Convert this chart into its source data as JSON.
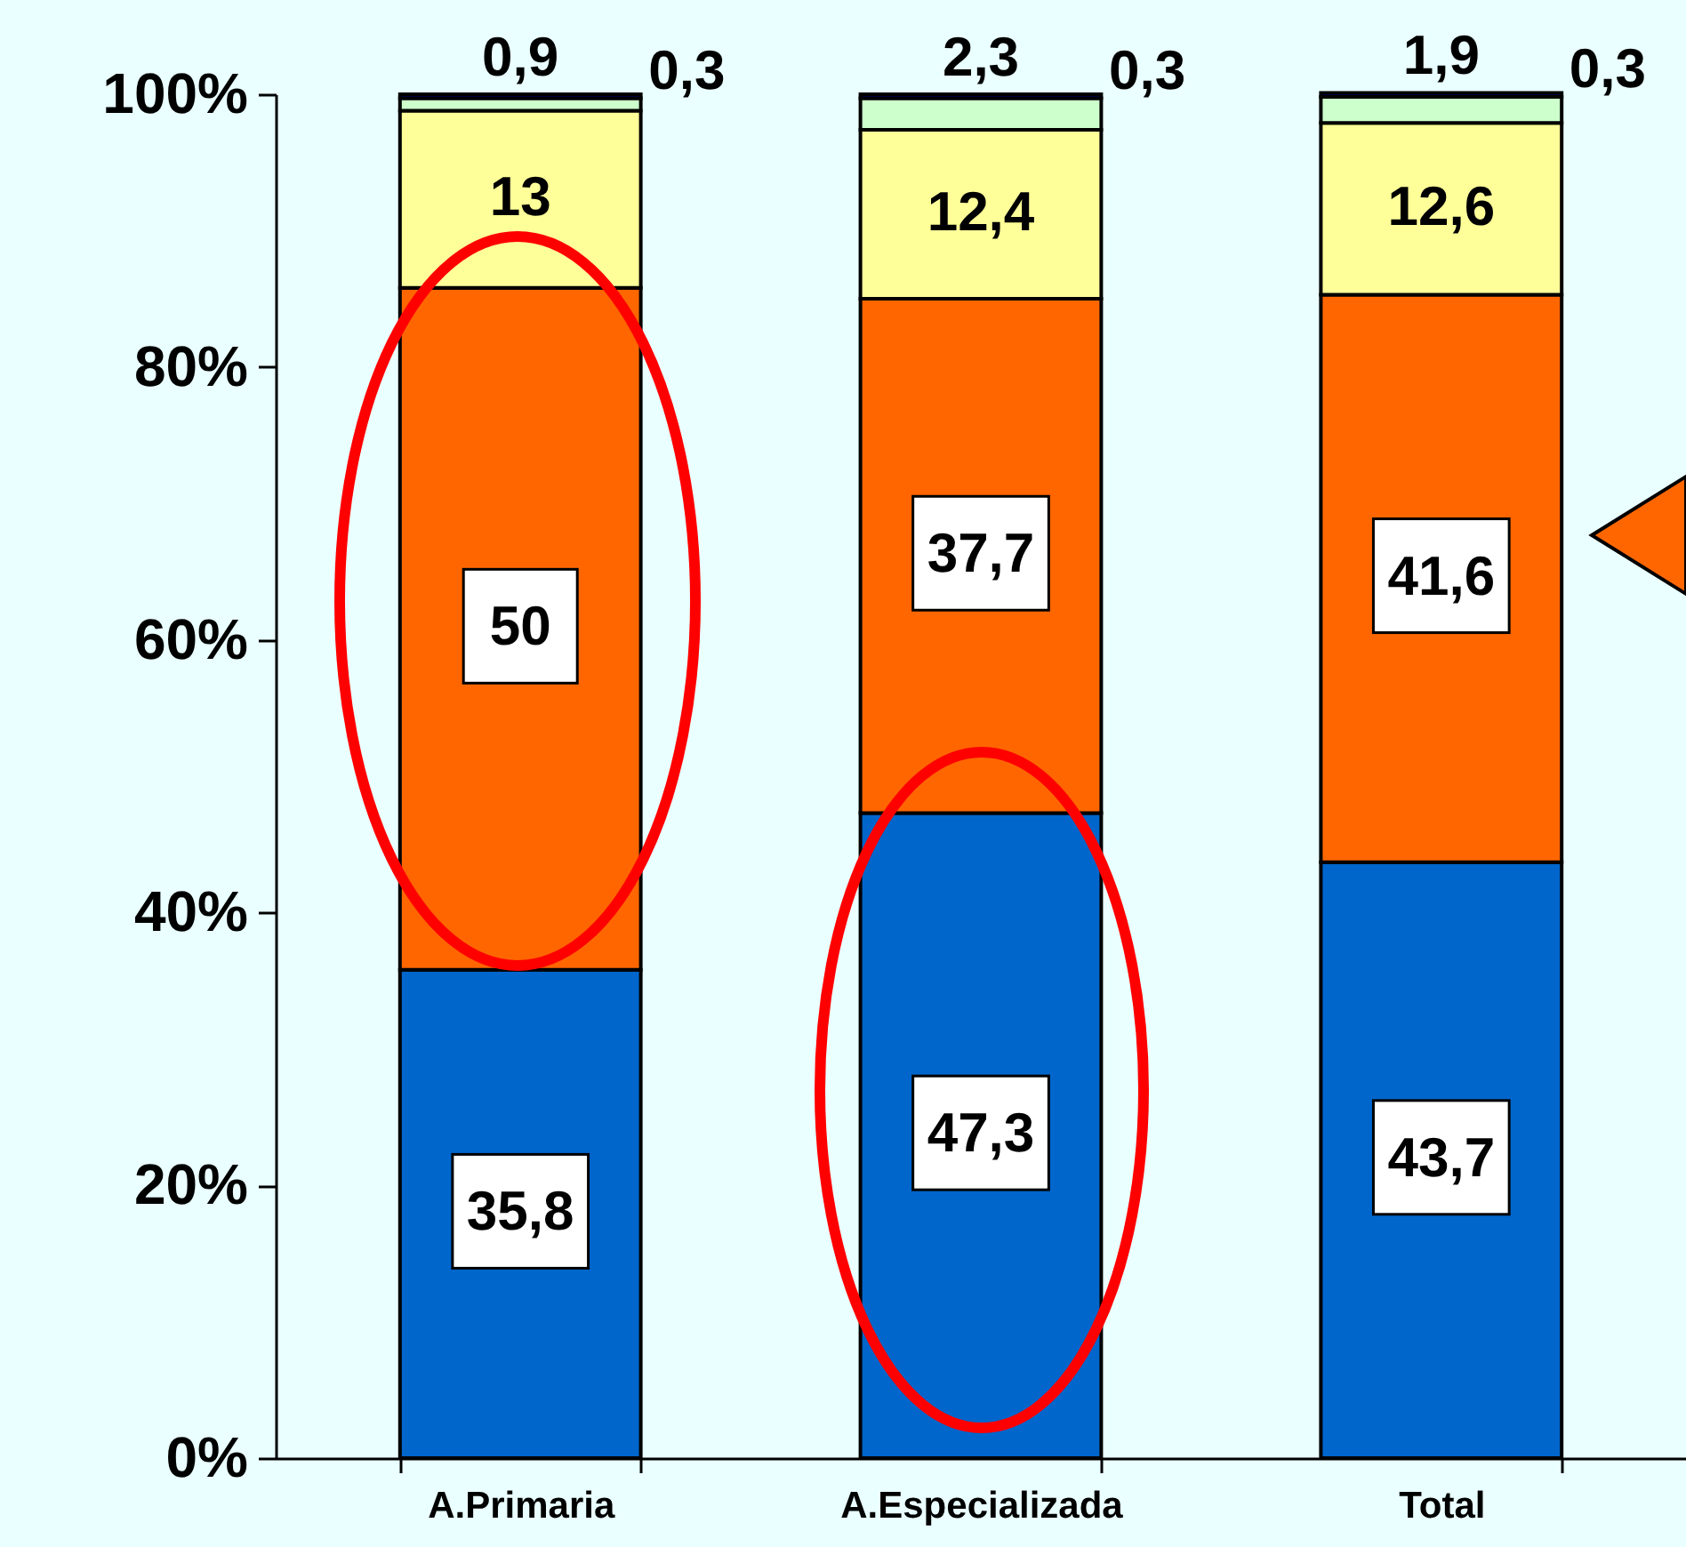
{
  "chart_data": {
    "type": "bar",
    "stacked": true,
    "categories": [
      "A.Primaria",
      "A.Especializada",
      "Total"
    ],
    "series": [
      {
        "color": "#0066cc",
        "values": [
          35.8,
          47.3,
          43.7
        ],
        "value_labels": [
          "35,8",
          "47,3",
          "43,7"
        ]
      },
      {
        "color": "#ff6600",
        "values": [
          50,
          37.7,
          41.6
        ],
        "value_labels": [
          "50",
          "37,7",
          "41,6"
        ]
      },
      {
        "color": "#ffff99",
        "values": [
          13,
          12.4,
          12.6
        ],
        "value_labels": [
          "13",
          "12,4",
          "12,6"
        ]
      },
      {
        "color": "#ccffcc",
        "values": [
          0.9,
          2.3,
          1.9
        ],
        "value_labels": [
          "0,9",
          "2,3",
          "1,9"
        ]
      },
      {
        "color": "#000080",
        "values": [
          0.3,
          0.3,
          0.3
        ],
        "value_labels": [
          "0,3",
          "0,3",
          "0,3"
        ]
      }
    ],
    "ylim": [
      0,
      100
    ],
    "yticks": [
      {
        "value": 0,
        "label": "0%"
      },
      {
        "value": 20,
        "label": "20%"
      },
      {
        "value": 40,
        "label": "40%"
      },
      {
        "value": 60,
        "label": "60%"
      },
      {
        "value": 80,
        "label": "80%"
      },
      {
        "value": 100,
        "label": "100%"
      }
    ],
    "grid": false,
    "legend": false
  }
}
